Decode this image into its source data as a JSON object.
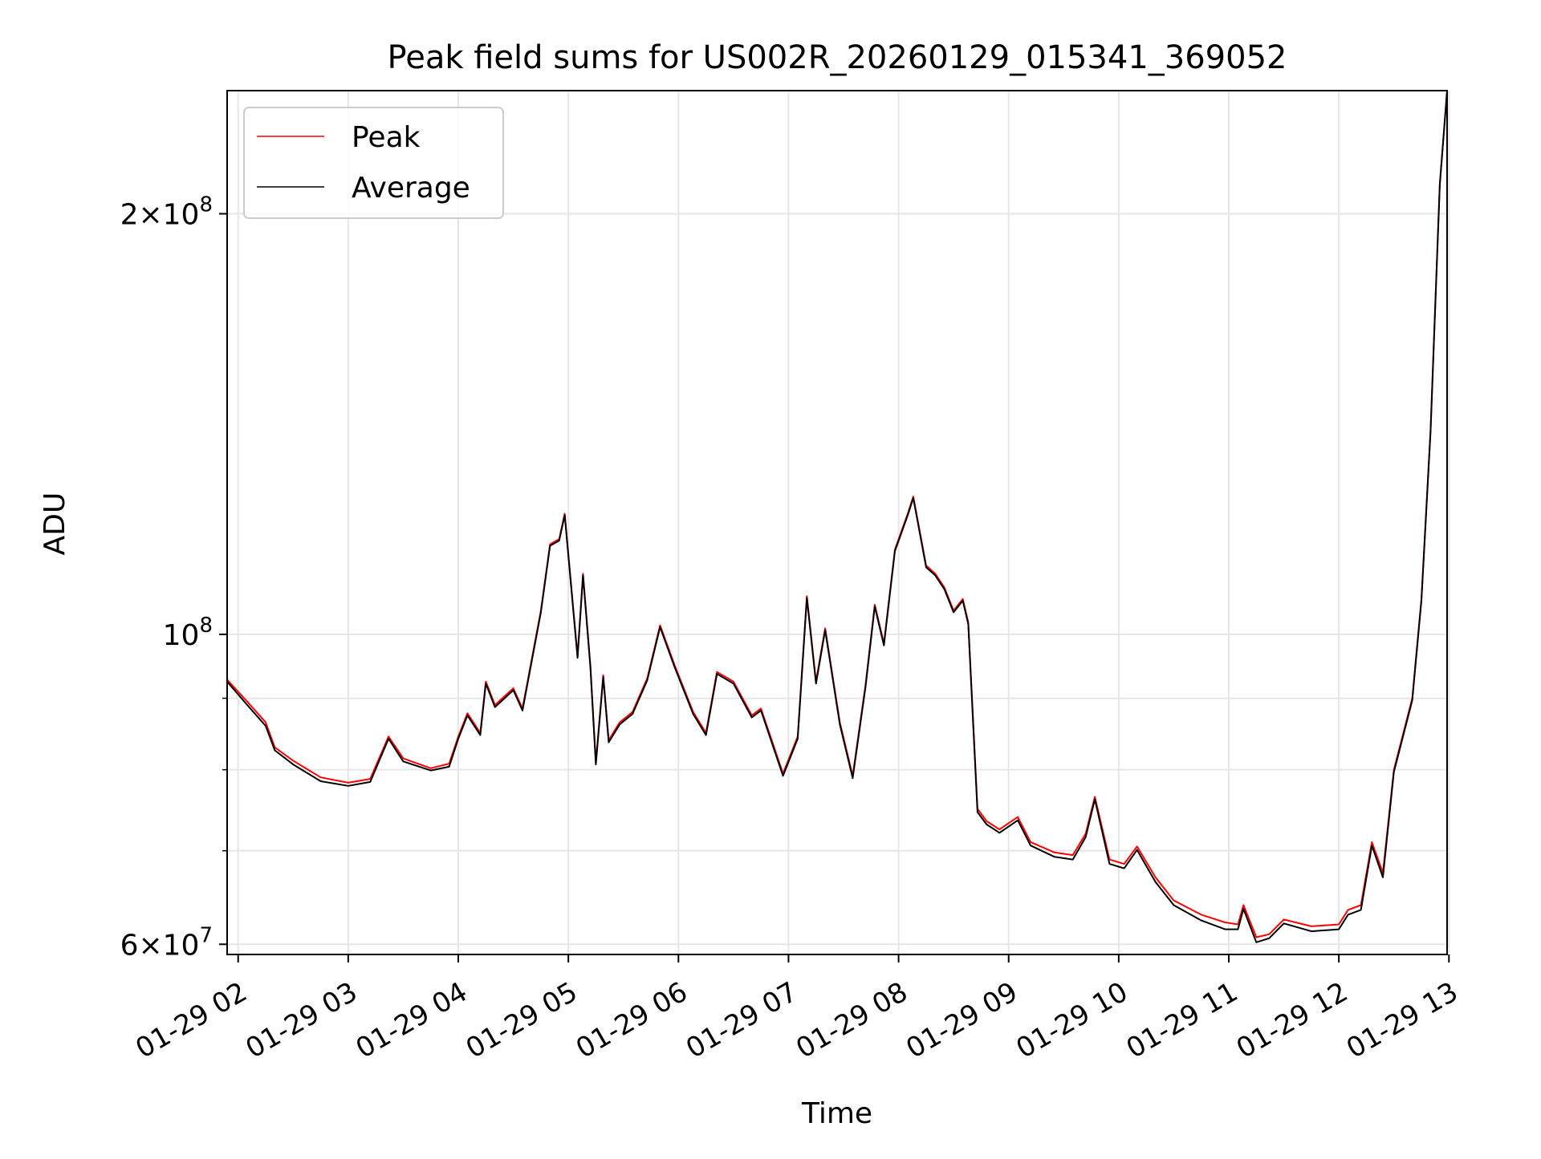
{
  "chart_data": {
    "type": "line",
    "title": "Peak field sums for US002R_20260129_015341_369052",
    "xlabel": "Time",
    "ylabel": "ADU",
    "yscale": "log",
    "grid": true,
    "legend_position": "upper-left",
    "xlim": [
      "2026-01-29 01:54",
      "2026-01-29 12:59"
    ],
    "ylim": [
      59000000,
      245000000
    ],
    "x_ticks": [
      {
        "value": "2026-01-29 02:00",
        "label": "01-29 02"
      },
      {
        "value": "2026-01-29 03:00",
        "label": "01-29 03"
      },
      {
        "value": "2026-01-29 04:00",
        "label": "01-29 04"
      },
      {
        "value": "2026-01-29 05:00",
        "label": "01-29 05"
      },
      {
        "value": "2026-01-29 06:00",
        "label": "01-29 06"
      },
      {
        "value": "2026-01-29 07:00",
        "label": "01-29 07"
      },
      {
        "value": "2026-01-29 08:00",
        "label": "01-29 08"
      },
      {
        "value": "2026-01-29 09:00",
        "label": "01-29 09"
      },
      {
        "value": "2026-01-29 10:00",
        "label": "01-29 10"
      },
      {
        "value": "2026-01-29 11:00",
        "label": "01-29 11"
      },
      {
        "value": "2026-01-29 12:00",
        "label": "01-29 12"
      },
      {
        "value": "2026-01-29 13:00",
        "label": "01-29 13"
      }
    ],
    "y_ticks_major": [
      {
        "value": 60000000,
        "mant": "6",
        "exp": "7"
      },
      {
        "value": 100000000,
        "mant": "",
        "exp": "8"
      },
      {
        "value": 200000000,
        "mant": "2",
        "exp": "8"
      }
    ],
    "y_ticks_minor": [
      70000000,
      80000000,
      90000000
    ],
    "series": [
      {
        "name": "Peak",
        "color": "#ff0000",
        "values": [
          [
            "2026-01-29 01:54",
            92800000
          ],
          [
            "2026-01-29 02:05",
            89500000
          ],
          [
            "2026-01-29 02:15",
            86500000
          ],
          [
            "2026-01-29 02:20",
            83000000
          ],
          [
            "2026-01-29 02:30",
            81200000
          ],
          [
            "2026-01-29 02:45",
            79000000
          ],
          [
            "2026-01-29 03:00",
            78300000
          ],
          [
            "2026-01-29 03:12",
            78800000
          ],
          [
            "2026-01-29 03:22",
            84500000
          ],
          [
            "2026-01-29 03:30",
            81500000
          ],
          [
            "2026-01-29 03:45",
            80200000
          ],
          [
            "2026-01-29 03:55",
            80800000
          ],
          [
            "2026-01-29 04:00",
            84500000
          ],
          [
            "2026-01-29 04:05",
            87800000
          ],
          [
            "2026-01-29 04:12",
            85000000
          ],
          [
            "2026-01-29 04:15",
            92500000
          ],
          [
            "2026-01-29 04:20",
            89000000
          ],
          [
            "2026-01-29 04:30",
            91500000
          ],
          [
            "2026-01-29 04:35",
            88500000
          ],
          [
            "2026-01-29 04:45",
            104000000
          ],
          [
            "2026-01-29 04:50",
            116000000
          ],
          [
            "2026-01-29 04:55",
            117000000
          ],
          [
            "2026-01-29 04:58",
            122000000
          ],
          [
            "2026-01-29 05:05",
            96500000
          ],
          [
            "2026-01-29 05:08",
            110500000
          ],
          [
            "2026-01-29 05:12",
            95000000
          ],
          [
            "2026-01-29 05:15",
            81000000
          ],
          [
            "2026-01-29 05:19",
            93500000
          ],
          [
            "2026-01-29 05:22",
            84000000
          ],
          [
            "2026-01-29 05:28",
            86500000
          ],
          [
            "2026-01-29 05:35",
            88000000
          ],
          [
            "2026-01-29 05:43",
            93000000
          ],
          [
            "2026-01-29 05:50",
            101500000
          ],
          [
            "2026-01-29 05:58",
            95000000
          ],
          [
            "2026-01-29 06:08",
            88000000
          ],
          [
            "2026-01-29 06:15",
            85000000
          ],
          [
            "2026-01-29 06:21",
            94000000
          ],
          [
            "2026-01-29 06:30",
            92500000
          ],
          [
            "2026-01-29 06:40",
            87500000
          ],
          [
            "2026-01-29 06:45",
            88500000
          ],
          [
            "2026-01-29 06:57",
            79500000
          ],
          [
            "2026-01-29 07:05",
            84500000
          ],
          [
            "2026-01-29 07:10",
            106500000
          ],
          [
            "2026-01-29 07:15",
            92500000
          ],
          [
            "2026-01-29 07:20",
            101000000
          ],
          [
            "2026-01-29 07:28",
            86500000
          ],
          [
            "2026-01-29 07:35",
            79200000
          ],
          [
            "2026-01-29 07:42",
            92000000
          ],
          [
            "2026-01-29 07:47",
            105000000
          ],
          [
            "2026-01-29 07:52",
            98500000
          ],
          [
            "2026-01-29 07:58",
            115000000
          ],
          [
            "2026-01-29 08:05",
            122000000
          ],
          [
            "2026-01-29 08:08",
            125500000
          ],
          [
            "2026-01-29 08:15",
            112000000
          ],
          [
            "2026-01-29 08:20",
            110500000
          ],
          [
            "2026-01-29 08:25",
            108000000
          ],
          [
            "2026-01-29 08:30",
            104000000
          ],
          [
            "2026-01-29 08:35",
            106000000
          ],
          [
            "2026-01-29 08:38",
            102000000
          ],
          [
            "2026-01-29 08:43",
            75000000
          ],
          [
            "2026-01-29 08:48",
            73500000
          ],
          [
            "2026-01-29 08:55",
            72500000
          ],
          [
            "2026-01-29 09:05",
            74000000
          ],
          [
            "2026-01-29 09:12",
            71000000
          ],
          [
            "2026-01-29 09:25",
            69800000
          ],
          [
            "2026-01-29 09:35",
            69500000
          ],
          [
            "2026-01-29 09:42",
            72000000
          ],
          [
            "2026-01-29 09:47",
            76500000
          ],
          [
            "2026-01-29 09:55",
            69000000
          ],
          [
            "2026-01-29 10:03",
            68500000
          ],
          [
            "2026-01-29 10:10",
            70500000
          ],
          [
            "2026-01-29 10:20",
            67000000
          ],
          [
            "2026-01-29 10:30",
            64500000
          ],
          [
            "2026-01-29 10:45",
            63000000
          ],
          [
            "2026-01-29 10:58",
            62200000
          ],
          [
            "2026-01-29 11:05",
            62000000
          ],
          [
            "2026-01-29 11:08",
            64000000
          ],
          [
            "2026-01-29 11:15",
            60700000
          ],
          [
            "2026-01-29 11:22",
            61000000
          ],
          [
            "2026-01-29 11:30",
            62500000
          ],
          [
            "2026-01-29 11:45",
            61800000
          ],
          [
            "2026-01-29 12:00",
            62000000
          ],
          [
            "2026-01-29 12:05",
            63500000
          ],
          [
            "2026-01-29 12:12",
            64000000
          ],
          [
            "2026-01-29 12:18",
            71000000
          ],
          [
            "2026-01-29 12:24",
            67500000
          ],
          [
            "2026-01-29 12:30",
            80000000
          ],
          [
            "2026-01-29 12:40",
            90000000
          ],
          [
            "2026-01-29 12:45",
            106000000
          ],
          [
            "2026-01-29 12:50",
            140000000
          ],
          [
            "2026-01-29 12:55",
            210000000
          ],
          [
            "2026-01-29 12:59",
            245000000
          ]
        ]
      },
      {
        "name": "Average",
        "color": "#000000",
        "values": [
          [
            "2026-01-29 01:54",
            92500000
          ],
          [
            "2026-01-29 02:05",
            89000000
          ],
          [
            "2026-01-29 02:15",
            86000000
          ],
          [
            "2026-01-29 02:20",
            82600000
          ],
          [
            "2026-01-29 02:30",
            80700000
          ],
          [
            "2026-01-29 02:45",
            78500000
          ],
          [
            "2026-01-29 03:00",
            77900000
          ],
          [
            "2026-01-29 03:12",
            78400000
          ],
          [
            "2026-01-29 03:22",
            84200000
          ],
          [
            "2026-01-29 03:30",
            81100000
          ],
          [
            "2026-01-29 03:45",
            79900000
          ],
          [
            "2026-01-29 03:55",
            80400000
          ],
          [
            "2026-01-29 04:00",
            84200000
          ],
          [
            "2026-01-29 04:05",
            87500000
          ],
          [
            "2026-01-29 04:12",
            84700000
          ],
          [
            "2026-01-29 04:15",
            92200000
          ],
          [
            "2026-01-29 04:20",
            88700000
          ],
          [
            "2026-01-29 04:30",
            91200000
          ],
          [
            "2026-01-29 04:35",
            88200000
          ],
          [
            "2026-01-29 04:45",
            103700000
          ],
          [
            "2026-01-29 04:50",
            115700000
          ],
          [
            "2026-01-29 04:55",
            116700000
          ],
          [
            "2026-01-29 04:58",
            121700000
          ],
          [
            "2026-01-29 05:05",
            96200000
          ],
          [
            "2026-01-29 05:08",
            110200000
          ],
          [
            "2026-01-29 05:12",
            94700000
          ],
          [
            "2026-01-29 05:15",
            80700000
          ],
          [
            "2026-01-29 05:19",
            93200000
          ],
          [
            "2026-01-29 05:22",
            83700000
          ],
          [
            "2026-01-29 05:28",
            86200000
          ],
          [
            "2026-01-29 05:35",
            87700000
          ],
          [
            "2026-01-29 05:43",
            92700000
          ],
          [
            "2026-01-29 05:50",
            101200000
          ],
          [
            "2026-01-29 05:58",
            94700000
          ],
          [
            "2026-01-29 06:08",
            87700000
          ],
          [
            "2026-01-29 06:15",
            84700000
          ],
          [
            "2026-01-29 06:21",
            93700000
          ],
          [
            "2026-01-29 06:30",
            92200000
          ],
          [
            "2026-01-29 06:40",
            87200000
          ],
          [
            "2026-01-29 06:45",
            88200000
          ],
          [
            "2026-01-29 06:57",
            79200000
          ],
          [
            "2026-01-29 07:05",
            84200000
          ],
          [
            "2026-01-29 07:10",
            106200000
          ],
          [
            "2026-01-29 07:15",
            92200000
          ],
          [
            "2026-01-29 07:20",
            100700000
          ],
          [
            "2026-01-29 07:28",
            86200000
          ],
          [
            "2026-01-29 07:35",
            78900000
          ],
          [
            "2026-01-29 07:42",
            91700000
          ],
          [
            "2026-01-29 07:47",
            104700000
          ],
          [
            "2026-01-29 07:52",
            98200000
          ],
          [
            "2026-01-29 07:58",
            114700000
          ],
          [
            "2026-01-29 08:05",
            121700000
          ],
          [
            "2026-01-29 08:08",
            125200000
          ],
          [
            "2026-01-29 08:15",
            111700000
          ],
          [
            "2026-01-29 08:20",
            110200000
          ],
          [
            "2026-01-29 08:25",
            107700000
          ],
          [
            "2026-01-29 08:30",
            103700000
          ],
          [
            "2026-01-29 08:35",
            105700000
          ],
          [
            "2026-01-29 08:38",
            101700000
          ],
          [
            "2026-01-29 08:43",
            74600000
          ],
          [
            "2026-01-29 08:48",
            73100000
          ],
          [
            "2026-01-29 08:55",
            72100000
          ],
          [
            "2026-01-29 09:05",
            73600000
          ],
          [
            "2026-01-29 09:12",
            70600000
          ],
          [
            "2026-01-29 09:25",
            69300000
          ],
          [
            "2026-01-29 09:35",
            69000000
          ],
          [
            "2026-01-29 09:42",
            71600000
          ],
          [
            "2026-01-29 09:47",
            76200000
          ],
          [
            "2026-01-29 09:55",
            68500000
          ],
          [
            "2026-01-29 10:03",
            68000000
          ],
          [
            "2026-01-29 10:10",
            70100000
          ],
          [
            "2026-01-29 10:20",
            66500000
          ],
          [
            "2026-01-29 10:30",
            64000000
          ],
          [
            "2026-01-29 10:45",
            62400000
          ],
          [
            "2026-01-29 10:58",
            61500000
          ],
          [
            "2026-01-29 11:05",
            61500000
          ],
          [
            "2026-01-29 11:08",
            63600000
          ],
          [
            "2026-01-29 11:15",
            60200000
          ],
          [
            "2026-01-29 11:22",
            60600000
          ],
          [
            "2026-01-29 11:30",
            62100000
          ],
          [
            "2026-01-29 11:45",
            61300000
          ],
          [
            "2026-01-29 12:00",
            61500000
          ],
          [
            "2026-01-29 12:05",
            63000000
          ],
          [
            "2026-01-29 12:12",
            63500000
          ],
          [
            "2026-01-29 12:18",
            70600000
          ],
          [
            "2026-01-29 12:24",
            67000000
          ],
          [
            "2026-01-29 12:30",
            79700000
          ],
          [
            "2026-01-29 12:40",
            89700000
          ],
          [
            "2026-01-29 12:45",
            105700000
          ],
          [
            "2026-01-29 12:50",
            139700000
          ],
          [
            "2026-01-29 12:55",
            209700000
          ],
          [
            "2026-01-29 12:59",
            245000000
          ]
        ]
      }
    ]
  }
}
